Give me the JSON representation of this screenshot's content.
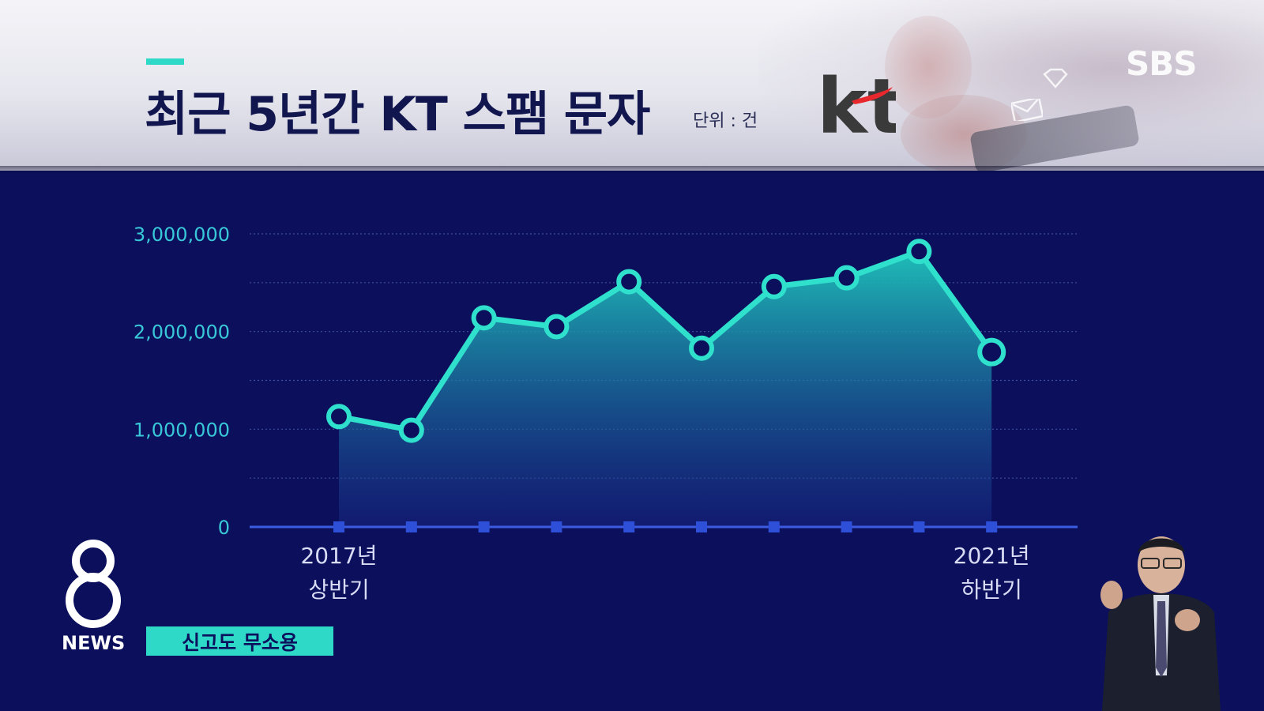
{
  "header": {
    "title": "최근 5년간 KT 스팸 문자",
    "unit": "단위 : 건",
    "kt_logo": "kt",
    "broadcaster": "SBS"
  },
  "footer": {
    "news_logo_number": "8",
    "news_logo_text": "NEWS",
    "caption": "신고도 무소용"
  },
  "colors": {
    "background": "#0b0f5c",
    "accent": "#2fd9c8",
    "title": "#12164f",
    "axis": "#3b5be0",
    "kt_red": "#e8282c"
  },
  "chart_data": {
    "type": "area",
    "title": "",
    "xlabel": "",
    "ylabel": "",
    "x": [
      1,
      2,
      3,
      4,
      5,
      6,
      7,
      8,
      9,
      10
    ],
    "tick_labels": [
      {
        "index": 0,
        "lines": [
          "2017년",
          "상반기"
        ]
      },
      {
        "index": 9,
        "lines": [
          "2021년",
          "하반기"
        ]
      }
    ],
    "values": [
      1130000,
      990000,
      2140000,
      2050000,
      2510000,
      1830000,
      2460000,
      2550000,
      2820000,
      1790000
    ],
    "ylim": [
      0,
      3000000
    ],
    "yticks": [
      0,
      1000000,
      2000000,
      3000000
    ],
    "ytick_labels": [
      "0",
      "1,000,000",
      "2,000,000",
      "3,000,000"
    ],
    "minor_gridlines": [
      500000,
      1500000,
      2500000
    ],
    "grid": true,
    "legend": "none"
  }
}
